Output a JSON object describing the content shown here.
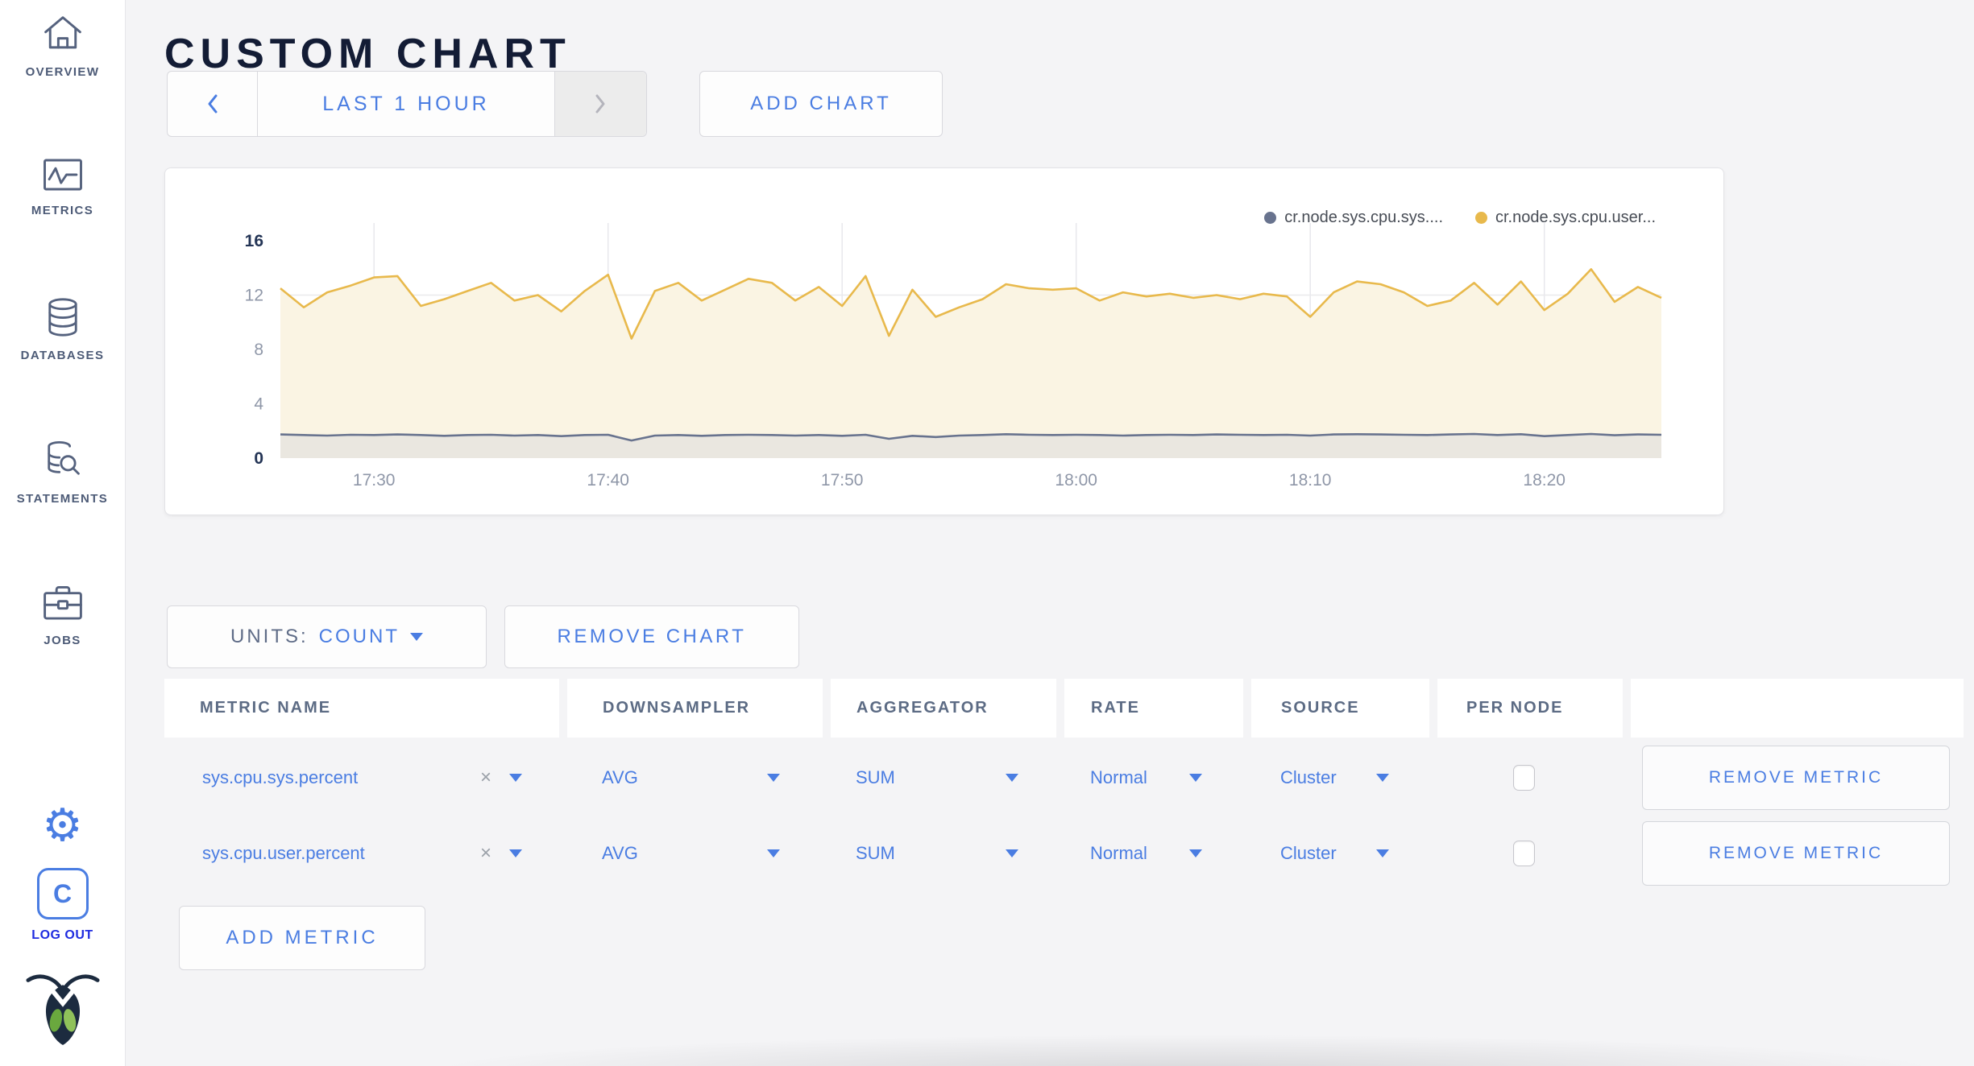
{
  "colors": {
    "accent_blue": "#4a7de2",
    "logout_blue": "#1f2ce0",
    "slate_text": "#5f6c87",
    "title_navy": "#131c35",
    "axis_gray": "#8f97a8",
    "axis_dark": "#233455",
    "page_bg": "#f4f4f6",
    "panel_border": "#e3e3e7",
    "series_sys_gray": "#68738e",
    "series_user_yellow": "#e8b94c"
  },
  "sidebar": {
    "items": [
      {
        "label": "OVERVIEW",
        "icon": "home-icon"
      },
      {
        "label": "METRICS",
        "icon": "metrics-icon"
      },
      {
        "label": "DATABASES",
        "icon": "database-icon"
      },
      {
        "label": "STATEMENTS",
        "icon": "statements-icon"
      },
      {
        "label": "JOBS",
        "icon": "jobs-icon"
      }
    ],
    "logout": {
      "monogram": "C",
      "label": "LOG OUT"
    }
  },
  "header": {
    "title": "CUSTOM CHART"
  },
  "toolbar": {
    "range_label": "LAST 1 HOUR",
    "add_chart_label": "ADD CHART"
  },
  "units_bar": {
    "units_label": "UNITS:",
    "units_value": "COUNT",
    "remove_chart_label": "REMOVE CHART"
  },
  "table": {
    "headers": [
      "METRIC NAME",
      "DOWNSAMPLER",
      "AGGREGATOR",
      "RATE",
      "SOURCE",
      "PER NODE"
    ],
    "rows": [
      {
        "metric": "sys.cpu.sys.percent",
        "clear": "×",
        "downsampler": "AVG",
        "aggregator": "SUM",
        "rate": "Normal",
        "source": "Cluster",
        "per_node_checked": false,
        "remove_label": "REMOVE METRIC"
      },
      {
        "metric": "sys.cpu.user.percent",
        "clear": "×",
        "downsampler": "AVG",
        "aggregator": "SUM",
        "rate": "Normal",
        "source": "Cluster",
        "per_node_checked": false,
        "remove_label": "REMOVE METRIC"
      }
    ]
  },
  "add_metric_label": "ADD METRIC",
  "chart_data": {
    "type": "line",
    "title": "",
    "xlabel": "",
    "ylabel": "",
    "ylim": [
      0,
      16
    ],
    "y_ticks": [
      0,
      4,
      8,
      12,
      16
    ],
    "grid_h_lines": [
      4,
      8,
      12
    ],
    "legend_position": "top-right",
    "x_ticks": [
      "17:30",
      "17:40",
      "17:50",
      "18:00",
      "18:10",
      "18:20"
    ],
    "x": [
      "17:26",
      "17:27",
      "17:28",
      "17:29",
      "17:30",
      "17:31",
      "17:32",
      "17:33",
      "17:34",
      "17:35",
      "17:36",
      "17:37",
      "17:38",
      "17:39",
      "17:40",
      "17:41",
      "17:42",
      "17:43",
      "17:44",
      "17:45",
      "17:46",
      "17:47",
      "17:48",
      "17:49",
      "17:50",
      "17:51",
      "17:52",
      "17:53",
      "17:54",
      "17:55",
      "17:56",
      "17:57",
      "17:58",
      "17:59",
      "18:00",
      "18:01",
      "18:02",
      "18:03",
      "18:04",
      "18:05",
      "18:06",
      "18:07",
      "18:08",
      "18:09",
      "18:10",
      "18:11",
      "18:12",
      "18:13",
      "18:14",
      "18:15",
      "18:16",
      "18:17",
      "18:18",
      "18:19",
      "18:20",
      "18:21",
      "18:22",
      "18:23",
      "18:24",
      "18:25"
    ],
    "series": [
      {
        "name": "cr.node.sys.cpu.sys....",
        "color": "#68738e",
        "fill": "#eae7e0",
        "values": [
          1.74,
          1.7,
          1.66,
          1.72,
          1.7,
          1.74,
          1.7,
          1.64,
          1.7,
          1.72,
          1.66,
          1.7,
          1.62,
          1.7,
          1.72,
          1.3,
          1.66,
          1.7,
          1.64,
          1.7,
          1.72,
          1.7,
          1.66,
          1.7,
          1.64,
          1.72,
          1.42,
          1.64,
          1.55,
          1.66,
          1.7,
          1.76,
          1.72,
          1.7,
          1.72,
          1.7,
          1.66,
          1.7,
          1.72,
          1.7,
          1.74,
          1.72,
          1.7,
          1.72,
          1.66,
          1.74,
          1.76,
          1.74,
          1.72,
          1.7,
          1.74,
          1.78,
          1.7,
          1.76,
          1.62,
          1.7,
          1.78,
          1.68,
          1.74,
          1.72
        ]
      },
      {
        "name": "cr.node.sys.cpu.user...",
        "color": "#e8b94c",
        "fill": "#faf4e3",
        "values": [
          12.5,
          11.1,
          12.2,
          12.7,
          13.3,
          13.4,
          11.2,
          11.7,
          12.3,
          12.9,
          11.6,
          12.0,
          10.8,
          12.3,
          13.5,
          8.8,
          12.3,
          12.9,
          11.6,
          12.4,
          13.2,
          12.9,
          11.6,
          12.6,
          11.2,
          13.4,
          9.0,
          12.4,
          10.4,
          11.1,
          11.7,
          12.8,
          12.5,
          12.4,
          12.5,
          11.6,
          12.2,
          11.9,
          12.1,
          11.8,
          12.0,
          11.7,
          12.1,
          11.9,
          10.4,
          12.2,
          13.0,
          12.8,
          12.2,
          11.2,
          11.6,
          12.9,
          11.3,
          13.0,
          10.9,
          12.1,
          13.9,
          11.5,
          12.6,
          11.8
        ]
      }
    ]
  }
}
